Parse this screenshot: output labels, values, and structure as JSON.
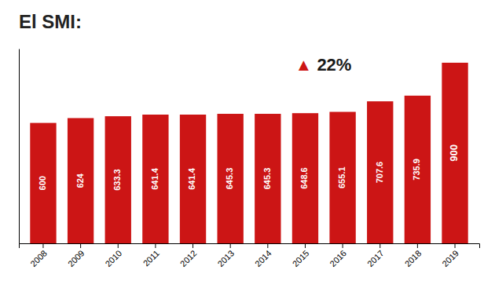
{
  "chart_data": {
    "type": "bar",
    "title": "El SMI:",
    "categories": [
      "2008",
      "2009",
      "2010",
      "2011",
      "2012",
      "2013",
      "2014",
      "2015",
      "2016",
      "2017",
      "2018",
      "2019"
    ],
    "values": [
      600,
      624,
      633.3,
      641.4,
      641.4,
      645.3,
      645.3,
      648.6,
      655.1,
      707.6,
      735.9,
      900
    ],
    "color": "#cc1515",
    "ylim": [
      0,
      970
    ],
    "tick_labels": "x",
    "data_labels": true,
    "annotations": [
      "▲",
      "22%"
    ]
  }
}
